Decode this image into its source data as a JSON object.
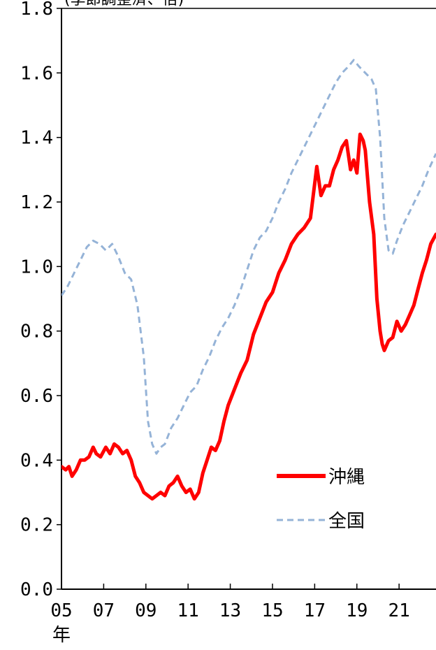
{
  "chart_data": {
    "type": "line",
    "title": "(季節調整済、倍)",
    "xlabel": "年",
    "ylabel": "",
    "ylim": [
      0,
      1.8
    ],
    "xlim": [
      2005.0,
      2022.75
    ],
    "y_ticks": [
      0.0,
      0.2,
      0.4,
      0.6,
      0.8,
      1.0,
      1.2,
      1.4,
      1.6,
      1.8
    ],
    "y_tick_labels": [
      "0.0",
      "0.2",
      "0.4",
      "0.6",
      "0.8",
      "1.0",
      "1.2",
      "1.4",
      "1.6",
      "1.8"
    ],
    "x_ticks": [
      2005,
      2007,
      2009,
      2011,
      2013,
      2015,
      2017,
      2019,
      2021
    ],
    "x_tick_labels": [
      "05",
      "07",
      "09",
      "11",
      "13",
      "15",
      "17",
      "19",
      "21"
    ],
    "grid": false,
    "legend": "lower-right",
    "series": [
      {
        "name": "沖縄",
        "color": "#ff0000",
        "style": "solid",
        "x": [
          2005.0,
          2005.2,
          2005.35,
          2005.5,
          2005.7,
          2005.9,
          2006.1,
          2006.3,
          2006.5,
          2006.65,
          2006.85,
          2007.1,
          2007.3,
          2007.5,
          2007.7,
          2007.9,
          2008.1,
          2008.3,
          2008.5,
          2008.7,
          2008.9,
          2009.1,
          2009.3,
          2009.5,
          2009.7,
          2009.9,
          2010.1,
          2010.3,
          2010.5,
          2010.7,
          2010.9,
          2011.1,
          2011.3,
          2011.5,
          2011.7,
          2011.9,
          2012.1,
          2012.3,
          2012.5,
          2012.7,
          2012.9,
          2013.2,
          2013.5,
          2013.8,
          2014.1,
          2014.4,
          2014.7,
          2015.0,
          2015.3,
          2015.6,
          2015.9,
          2016.2,
          2016.5,
          2016.8,
          2017.1,
          2017.3,
          2017.5,
          2017.7,
          2017.9,
          2018.1,
          2018.3,
          2018.5,
          2018.7,
          2018.85,
          2019.0,
          2019.15,
          2019.3,
          2019.4,
          2019.6,
          2019.8,
          2019.95,
          2020.1,
          2020.2,
          2020.3,
          2020.5,
          2020.7,
          2020.9,
          2021.1,
          2021.3,
          2021.5,
          2021.7,
          2021.9,
          2022.1,
          2022.3,
          2022.5,
          2022.75
        ],
        "y": [
          0.38,
          0.37,
          0.38,
          0.35,
          0.37,
          0.4,
          0.4,
          0.41,
          0.44,
          0.42,
          0.41,
          0.44,
          0.42,
          0.45,
          0.44,
          0.42,
          0.43,
          0.4,
          0.35,
          0.33,
          0.3,
          0.29,
          0.28,
          0.29,
          0.3,
          0.29,
          0.32,
          0.33,
          0.35,
          0.32,
          0.3,
          0.31,
          0.28,
          0.3,
          0.36,
          0.4,
          0.44,
          0.43,
          0.46,
          0.52,
          0.57,
          0.62,
          0.67,
          0.71,
          0.79,
          0.84,
          0.89,
          0.92,
          0.98,
          1.02,
          1.07,
          1.1,
          1.12,
          1.15,
          1.31,
          1.22,
          1.25,
          1.25,
          1.3,
          1.33,
          1.37,
          1.39,
          1.3,
          1.33,
          1.29,
          1.41,
          1.39,
          1.36,
          1.2,
          1.1,
          0.9,
          0.8,
          0.76,
          0.74,
          0.77,
          0.78,
          0.83,
          0.8,
          0.82,
          0.85,
          0.88,
          0.93,
          0.98,
          1.02,
          1.07,
          1.1
        ]
      },
      {
        "name": "全国",
        "color": "#95b3d7",
        "style": "dashed",
        "x": [
          2005.0,
          2005.3,
          2005.6,
          2005.9,
          2006.2,
          2006.5,
          2006.8,
          2007.1,
          2007.4,
          2007.7,
          2008.0,
          2008.3,
          2008.6,
          2008.9,
          2009.1,
          2009.3,
          2009.5,
          2009.7,
          2009.9,
          2010.2,
          2010.5,
          2010.8,
          2011.1,
          2011.4,
          2011.7,
          2012.0,
          2012.3,
          2012.6,
          2012.9,
          2013.2,
          2013.5,
          2013.8,
          2014.1,
          2014.4,
          2014.7,
          2015.0,
          2015.3,
          2015.6,
          2015.9,
          2016.2,
          2016.5,
          2016.8,
          2017.1,
          2017.4,
          2017.7,
          2018.0,
          2018.3,
          2018.6,
          2018.85,
          2019.1,
          2019.4,
          2019.7,
          2019.9,
          2020.1,
          2020.3,
          2020.5,
          2020.7,
          2020.9,
          2021.2,
          2021.5,
          2021.8,
          2022.1,
          2022.4,
          2022.75
        ],
        "y": [
          0.91,
          0.94,
          0.98,
          1.02,
          1.06,
          1.08,
          1.07,
          1.05,
          1.07,
          1.03,
          0.98,
          0.96,
          0.88,
          0.72,
          0.52,
          0.45,
          0.42,
          0.44,
          0.45,
          0.5,
          0.53,
          0.57,
          0.61,
          0.63,
          0.68,
          0.72,
          0.77,
          0.81,
          0.84,
          0.88,
          0.93,
          0.99,
          1.05,
          1.09,
          1.11,
          1.15,
          1.2,
          1.24,
          1.29,
          1.33,
          1.37,
          1.41,
          1.45,
          1.49,
          1.53,
          1.57,
          1.6,
          1.62,
          1.64,
          1.62,
          1.6,
          1.58,
          1.55,
          1.4,
          1.15,
          1.05,
          1.04,
          1.08,
          1.13,
          1.17,
          1.21,
          1.25,
          1.3,
          1.35
        ]
      }
    ]
  }
}
